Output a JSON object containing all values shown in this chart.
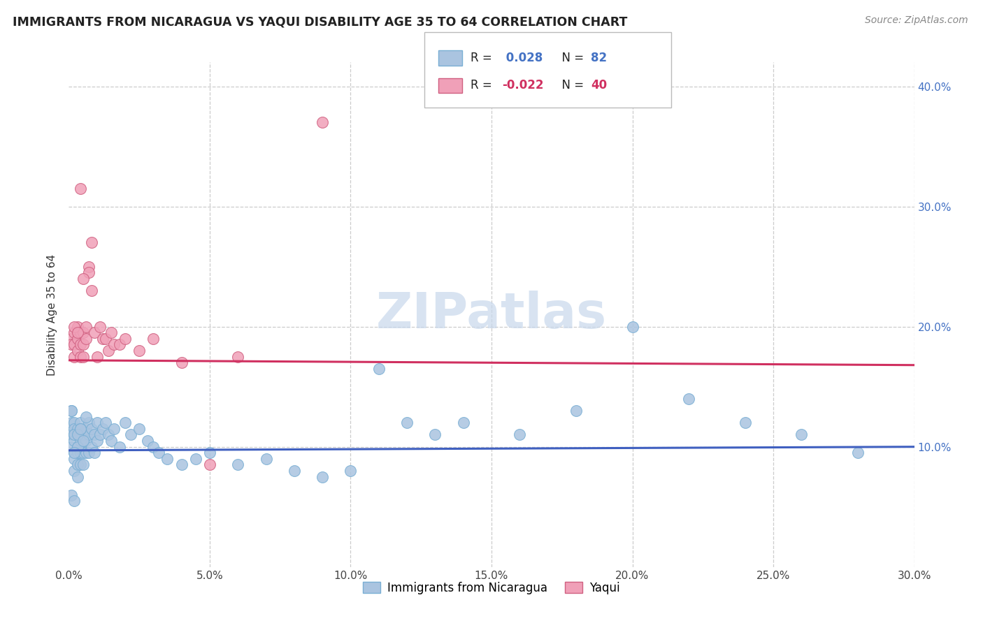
{
  "title": "IMMIGRANTS FROM NICARAGUA VS YAQUI DISABILITY AGE 35 TO 64 CORRELATION CHART",
  "source": "Source: ZipAtlas.com",
  "ylabel": "Disability Age 35 to 64",
  "xlim": [
    0.0,
    0.3
  ],
  "ylim": [
    0.0,
    0.42
  ],
  "nicaragua_color": "#aac4e0",
  "nicaragua_edge": "#7aafd4",
  "yaqui_color": "#f0a0b8",
  "yaqui_edge": "#d06080",
  "line_nicaragua_color": "#4060c0",
  "line_yaqui_color": "#d03060",
  "watermark_color": "#c8d8ec",
  "nicaragua_x": [
    0.001,
    0.001,
    0.001,
    0.001,
    0.002,
    0.002,
    0.002,
    0.002,
    0.002,
    0.002,
    0.002,
    0.003,
    0.003,
    0.003,
    0.003,
    0.003,
    0.003,
    0.004,
    0.004,
    0.004,
    0.004,
    0.004,
    0.005,
    0.005,
    0.005,
    0.005,
    0.006,
    0.006,
    0.006,
    0.007,
    0.007,
    0.007,
    0.008,
    0.008,
    0.009,
    0.009,
    0.01,
    0.01,
    0.011,
    0.012,
    0.013,
    0.014,
    0.015,
    0.016,
    0.018,
    0.02,
    0.022,
    0.025,
    0.028,
    0.03,
    0.032,
    0.035,
    0.04,
    0.045,
    0.05,
    0.06,
    0.07,
    0.08,
    0.09,
    0.1,
    0.11,
    0.12,
    0.13,
    0.14,
    0.16,
    0.18,
    0.2,
    0.22,
    0.24,
    0.26,
    0.28,
    0.001,
    0.002,
    0.003,
    0.004,
    0.003,
    0.002,
    0.004,
    0.005,
    0.006,
    0.001,
    0.002
  ],
  "nicaragua_y": [
    0.13,
    0.12,
    0.11,
    0.1,
    0.12,
    0.115,
    0.11,
    0.105,
    0.095,
    0.09,
    0.08,
    0.115,
    0.11,
    0.1,
    0.095,
    0.085,
    0.075,
    0.12,
    0.11,
    0.105,
    0.095,
    0.085,
    0.11,
    0.105,
    0.095,
    0.085,
    0.115,
    0.105,
    0.095,
    0.12,
    0.11,
    0.095,
    0.115,
    0.1,
    0.11,
    0.095,
    0.12,
    0.105,
    0.11,
    0.115,
    0.12,
    0.11,
    0.105,
    0.115,
    0.1,
    0.12,
    0.11,
    0.115,
    0.105,
    0.1,
    0.095,
    0.09,
    0.085,
    0.09,
    0.095,
    0.085,
    0.09,
    0.08,
    0.075,
    0.08,
    0.165,
    0.12,
    0.11,
    0.12,
    0.11,
    0.13,
    0.2,
    0.14,
    0.12,
    0.11,
    0.095,
    0.13,
    0.11,
    0.1,
    0.115,
    0.11,
    0.095,
    0.115,
    0.105,
    0.125,
    0.06,
    0.055
  ],
  "yaqui_x": [
    0.001,
    0.001,
    0.002,
    0.002,
    0.002,
    0.003,
    0.003,
    0.003,
    0.004,
    0.004,
    0.004,
    0.005,
    0.005,
    0.005,
    0.006,
    0.006,
    0.007,
    0.007,
    0.008,
    0.008,
    0.009,
    0.01,
    0.011,
    0.012,
    0.013,
    0.014,
    0.015,
    0.016,
    0.018,
    0.02,
    0.025,
    0.03,
    0.04,
    0.05,
    0.06,
    0.09,
    0.002,
    0.003,
    0.004,
    0.005
  ],
  "yaqui_y": [
    0.19,
    0.185,
    0.195,
    0.185,
    0.175,
    0.2,
    0.19,
    0.18,
    0.195,
    0.185,
    0.175,
    0.195,
    0.185,
    0.175,
    0.2,
    0.19,
    0.25,
    0.245,
    0.27,
    0.23,
    0.195,
    0.175,
    0.2,
    0.19,
    0.19,
    0.18,
    0.195,
    0.185,
    0.185,
    0.19,
    0.18,
    0.19,
    0.17,
    0.085,
    0.175,
    0.37,
    0.2,
    0.195,
    0.315,
    0.24
  ]
}
